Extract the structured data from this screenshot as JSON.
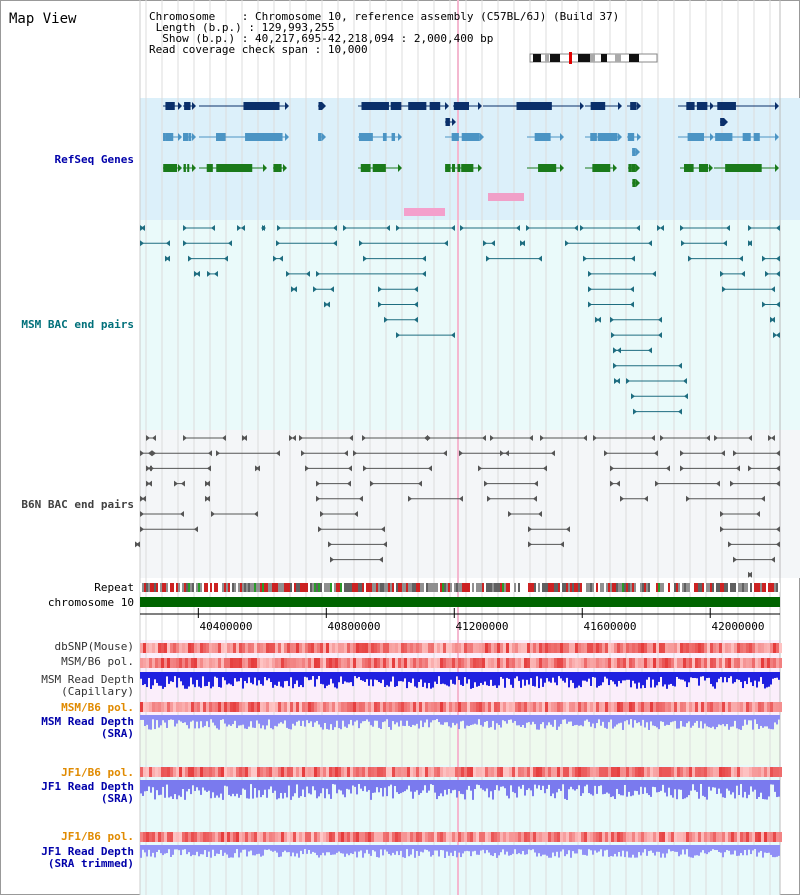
{
  "view": {
    "title": "Map View",
    "info": {
      "chromosome_key": "Chromosome",
      "chromosome_value": "Chromosome 10, reference assembly (C57BL/6J) (Build 37)",
      "length_key": "Length (b.p.)",
      "length_value": "129,993,255",
      "show_key": "Show (b.p.)",
      "show_value": "40,217,695-42,218,094 : 2,000,400 bp",
      "coverage_key": "Read coverage check span",
      "coverage_value": "10,000"
    },
    "range": {
      "start": 40217695,
      "end": 42218094
    },
    "axis_ticks": [
      "40400000",
      "40800000",
      "41200000",
      "41600000",
      "42000000"
    ],
    "axis_tick_values": [
      40400000,
      40800000,
      41200000,
      41600000,
      42000000
    ]
  },
  "tracks": {
    "refseq": {
      "label": "RefSeq Genes",
      "color": "#0000aa",
      "bg": "#dcf0fa"
    },
    "msm_bac": {
      "label": "MSM BAC end pairs",
      "color": "#00707a",
      "bg": "#eafafa"
    },
    "b6n_bac": {
      "label": "B6N BAC end pairs",
      "color": "#404040",
      "bg": "#f4f6f8"
    },
    "repeat": {
      "label": "Repeat"
    },
    "chromosome": {
      "label": "chromosome 10",
      "color": "#006400"
    },
    "dbsnp": {
      "label": "dbSNP(Mouse)"
    },
    "msm_b6_pol": {
      "label": "MSM/B6 pol."
    },
    "msm_depth_cap": {
      "label_1": "MSM Read Depth",
      "label_2": "(Capillary)"
    },
    "msm_b6_pol_2": {
      "label": "MSM/B6 pol.",
      "color": "#e08a00"
    },
    "msm_depth_sra": {
      "label_1": "MSM Read Depth",
      "label_2": "(SRA)",
      "color": "#0000aa"
    },
    "jf1_b6_pol": {
      "label": "JF1/B6 pol.",
      "color": "#e08a00"
    },
    "jf1_depth_sra": {
      "label_1": "JF1 Read Depth",
      "label_2": "(SRA)",
      "color": "#0000aa"
    },
    "jf1_b6_pol_2": {
      "label": "JF1/B6 pol.",
      "color": "#e08a00"
    },
    "jf1_depth_trim": {
      "label_1": "JF1 Read Depth",
      "label_2": "(SRA trimmed)",
      "color": "#0000aa"
    }
  }
}
